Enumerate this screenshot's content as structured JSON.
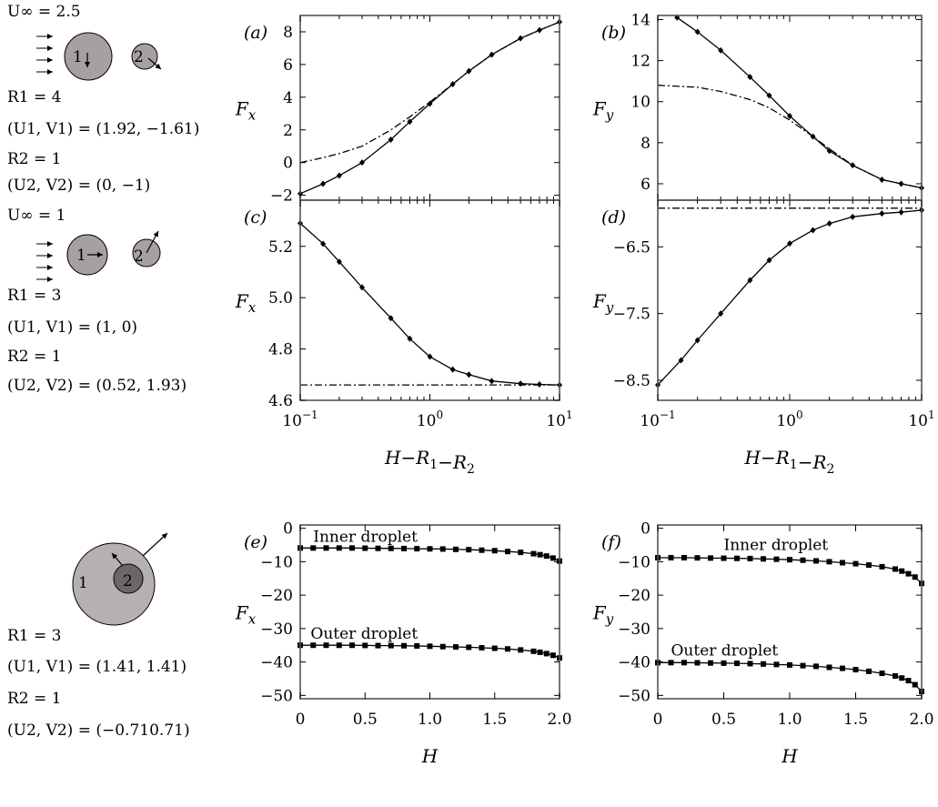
{
  "left_column": {
    "case1": {
      "u_inf": "U∞ = 2.5",
      "r1": "R1 = 4",
      "uv1": "(U1, V1) = (1.92, −1.61)",
      "r2": "R2 = 1",
      "uv2": "(U2, V2) = (0, −1)",
      "drop1_label": "1",
      "drop2_label": "2"
    },
    "case2": {
      "u_inf": "U∞ = 1",
      "r1": "R1 = 3",
      "uv1": "(U1, V1) = (1, 0)",
      "r2": "R2 = 1",
      "uv2": "(U2, V2) = (0.52, 1.93)",
      "drop1_label": "1",
      "drop2_label": "2"
    },
    "case3": {
      "r1": "R1 = 3",
      "uv1": "(U1, V1) = (1.41, 1.41)",
      "r2": "R2 = 1",
      "uv2": "(U2, V2) = (−0.710.71)",
      "drop1_label": "1",
      "drop2_label": "2"
    }
  },
  "chart_data": [
    {
      "panel": "(a)",
      "type": "line",
      "ylabel": "Fx",
      "xlabel": "",
      "xscale": "log",
      "xlim": [
        0.1,
        10
      ],
      "ylim": [
        -2.3,
        9
      ],
      "yticks": [
        -2,
        0,
        2,
        4,
        6,
        8
      ],
      "yticklabels": [
        "−2",
        "0",
        "2",
        "4",
        "6",
        "8"
      ],
      "xticks": [],
      "series": [
        {
          "style": "solid-diamond",
          "x": [
            0.1,
            0.15,
            0.2,
            0.3,
            0.5,
            0.7,
            1,
            1.5,
            2,
            3,
            5,
            7,
            10
          ],
          "y": [
            -1.9,
            -1.3,
            -0.8,
            0.0,
            1.4,
            2.5,
            3.6,
            4.8,
            5.6,
            6.6,
            7.6,
            8.1,
            8.6
          ]
        },
        {
          "style": "dashdot",
          "x": [
            0.1,
            0.15,
            0.2,
            0.3,
            0.5,
            0.7,
            1,
            1.5,
            2,
            3,
            5,
            7,
            10
          ],
          "y": [
            0.0,
            0.3,
            0.55,
            1.0,
            2.0,
            2.8,
            3.7,
            4.8,
            5.6,
            6.6,
            7.6,
            8.1,
            8.6
          ]
        }
      ]
    },
    {
      "panel": "(b)",
      "type": "line",
      "ylabel": "Fy",
      "xlabel": "",
      "xscale": "log",
      "xlim": [
        0.1,
        10
      ],
      "ylim": [
        5.2,
        14.2
      ],
      "yticks": [
        6,
        8,
        10,
        12,
        14
      ],
      "yticklabels": [
        "6",
        "8",
        "10",
        "12",
        "14"
      ],
      "xticks": [],
      "series": [
        {
          "style": "solid-diamond",
          "x": [
            0.14,
            0.2,
            0.3,
            0.5,
            0.7,
            1,
            1.5,
            2,
            3,
            5,
            7,
            10
          ],
          "y": [
            14.1,
            13.4,
            12.5,
            11.2,
            10.3,
            9.3,
            8.3,
            7.6,
            6.9,
            6.2,
            6.0,
            5.8
          ]
        },
        {
          "style": "dashdot",
          "x": [
            0.1,
            0.2,
            0.3,
            0.5,
            0.7,
            1,
            1.5,
            2,
            3,
            5,
            7,
            10
          ],
          "y": [
            10.8,
            10.7,
            10.5,
            10.1,
            9.7,
            9.1,
            8.3,
            7.7,
            6.9,
            6.2,
            6.0,
            5.8
          ]
        }
      ]
    },
    {
      "panel": "(c)",
      "type": "line",
      "ylabel": "Fx",
      "xlabel": "H−R1−R2",
      "xscale": "log",
      "xlim": [
        0.1,
        10
      ],
      "ylim": [
        4.6,
        5.38
      ],
      "yticks": [
        4.6,
        4.8,
        5.0,
        5.2
      ],
      "yticklabels": [
        "4.6",
        "4.8",
        "5.0",
        "5.2"
      ],
      "xticks": [
        0.1,
        1,
        10
      ],
      "xticklabels": [
        "10",
        "10",
        "10"
      ],
      "xtickexps": [
        "−1",
        "0",
        "1"
      ],
      "series": [
        {
          "style": "solid-diamond",
          "x": [
            0.1,
            0.15,
            0.2,
            0.3,
            0.5,
            0.7,
            1,
            1.5,
            2,
            3,
            5,
            7,
            10
          ],
          "y": [
            5.29,
            5.21,
            5.14,
            5.04,
            4.92,
            4.84,
            4.77,
            4.72,
            4.7,
            4.675,
            4.665,
            4.662,
            4.66
          ]
        },
        {
          "style": "dashdot",
          "x": [
            0.1,
            10
          ],
          "y": [
            4.66,
            4.66
          ]
        }
      ]
    },
    {
      "panel": "(d)",
      "type": "line",
      "ylabel": "Fy",
      "xlabel": "H−R1−R2",
      "xscale": "log",
      "xlim": [
        0.1,
        10
      ],
      "ylim": [
        -8.8,
        -5.8
      ],
      "yticks": [
        -6.5,
        -7.5,
        -8.5
      ],
      "yticklabels": [
        "−6.5",
        "−7.5",
        "−8.5"
      ],
      "xticks": [
        0.1,
        1,
        10
      ],
      "xticklabels": [
        "10",
        "10",
        "10"
      ],
      "xtickexps": [
        "−1",
        "0",
        "1"
      ],
      "series": [
        {
          "style": "solid-diamond",
          "x": [
            0.1,
            0.15,
            0.2,
            0.3,
            0.5,
            0.7,
            1,
            1.5,
            2,
            3,
            5,
            7,
            10
          ],
          "y": [
            -8.57,
            -8.2,
            -7.9,
            -7.5,
            -7.0,
            -6.7,
            -6.45,
            -6.25,
            -6.15,
            -6.05,
            -6.0,
            -5.98,
            -5.95
          ]
        },
        {
          "style": "dashdot",
          "x": [
            0.1,
            10
          ],
          "y": [
            -5.92,
            -5.92
          ]
        }
      ]
    },
    {
      "panel": "(e)",
      "type": "line",
      "ylabel": "Fx",
      "xlabel": "H",
      "xscale": "linear",
      "xlim": [
        0,
        2
      ],
      "ylim": [
        -51,
        1
      ],
      "yticks": [
        0,
        -10,
        -20,
        -30,
        -40,
        -50
      ],
      "yticklabels": [
        "0",
        "−10",
        "−20",
        "−30",
        "−40",
        "−50"
      ],
      "xticks": [
        0,
        0.5,
        1,
        1.5,
        2
      ],
      "xticklabels": [
        "0",
        "0.5",
        "1.0",
        "1.5",
        "2.0"
      ],
      "annotations": [
        {
          "text": "Inner droplet",
          "x": 0.1,
          "y": -4
        },
        {
          "text": "Outer droplet",
          "x": 0.08,
          "y": -33
        }
      ],
      "series": [
        {
          "name": "Inner droplet",
          "style": "solid-square",
          "x": [
            0,
            0.1,
            0.2,
            0.3,
            0.4,
            0.5,
            0.6,
            0.7,
            0.8,
            0.9,
            1.0,
            1.1,
            1.2,
            1.3,
            1.4,
            1.5,
            1.6,
            1.7,
            1.8,
            1.85,
            1.9,
            1.95,
            2.0
          ],
          "y": [
            -5.9,
            -5.9,
            -5.9,
            -5.9,
            -5.9,
            -5.95,
            -6.0,
            -6.0,
            -6.05,
            -6.1,
            -6.15,
            -6.2,
            -6.3,
            -6.4,
            -6.55,
            -6.7,
            -6.95,
            -7.2,
            -7.6,
            -7.9,
            -8.3,
            -8.9,
            -9.8
          ]
        },
        {
          "name": "Outer droplet",
          "style": "solid-square",
          "x": [
            0,
            0.1,
            0.2,
            0.3,
            0.4,
            0.5,
            0.6,
            0.7,
            0.8,
            0.9,
            1.0,
            1.1,
            1.2,
            1.3,
            1.4,
            1.5,
            1.6,
            1.7,
            1.8,
            1.85,
            1.9,
            1.95,
            2.0
          ],
          "y": [
            -35.0,
            -35.0,
            -35.0,
            -35.0,
            -35.0,
            -35.05,
            -35.1,
            -35.1,
            -35.15,
            -35.2,
            -35.3,
            -35.4,
            -35.5,
            -35.6,
            -35.75,
            -35.9,
            -36.1,
            -36.4,
            -36.8,
            -37.1,
            -37.5,
            -38.0,
            -38.8
          ]
        }
      ]
    },
    {
      "panel": "(f)",
      "type": "line",
      "ylabel": "Fy",
      "xlabel": "H",
      "xscale": "linear",
      "xlim": [
        0,
        2
      ],
      "ylim": [
        -51,
        1
      ],
      "yticks": [
        0,
        -10,
        -20,
        -30,
        -40,
        -50
      ],
      "yticklabels": [
        "0",
        "−10",
        "−20",
        "−30",
        "−40",
        "−50"
      ],
      "xticks": [
        0,
        0.5,
        1,
        1.5,
        2
      ],
      "xticklabels": [
        "0",
        "0.5",
        "1.0",
        "1.5",
        "2.0"
      ],
      "annotations": [
        {
          "text": "Inner droplet",
          "x": 0.5,
          "y": -6.5
        },
        {
          "text": "Outer droplet",
          "x": 0.1,
          "y": -38
        }
      ],
      "series": [
        {
          "name": "Inner droplet",
          "style": "solid-square",
          "x": [
            0,
            0.1,
            0.2,
            0.3,
            0.4,
            0.5,
            0.6,
            0.7,
            0.8,
            0.9,
            1.0,
            1.1,
            1.2,
            1.3,
            1.4,
            1.5,
            1.6,
            1.7,
            1.8,
            1.85,
            1.9,
            1.95,
            2.0
          ],
          "y": [
            -8.8,
            -8.8,
            -8.8,
            -8.85,
            -8.9,
            -8.95,
            -9.0,
            -9.05,
            -9.15,
            -9.25,
            -9.4,
            -9.55,
            -9.75,
            -10.0,
            -10.3,
            -10.6,
            -11.0,
            -11.5,
            -12.2,
            -12.8,
            -13.6,
            -14.6,
            -16.5
          ]
        },
        {
          "name": "Outer droplet",
          "style": "solid-square",
          "x": [
            0,
            0.1,
            0.2,
            0.3,
            0.4,
            0.5,
            0.6,
            0.7,
            0.8,
            0.9,
            1.0,
            1.1,
            1.2,
            1.3,
            1.4,
            1.5,
            1.6,
            1.7,
            1.8,
            1.85,
            1.9,
            1.95,
            2.0
          ],
          "y": [
            -40.2,
            -40.2,
            -40.2,
            -40.25,
            -40.3,
            -40.35,
            -40.4,
            -40.5,
            -40.6,
            -40.75,
            -40.9,
            -41.1,
            -41.3,
            -41.6,
            -41.9,
            -42.3,
            -42.8,
            -43.4,
            -44.2,
            -44.8,
            -45.6,
            -46.8,
            -48.8
          ]
        }
      ]
    }
  ]
}
